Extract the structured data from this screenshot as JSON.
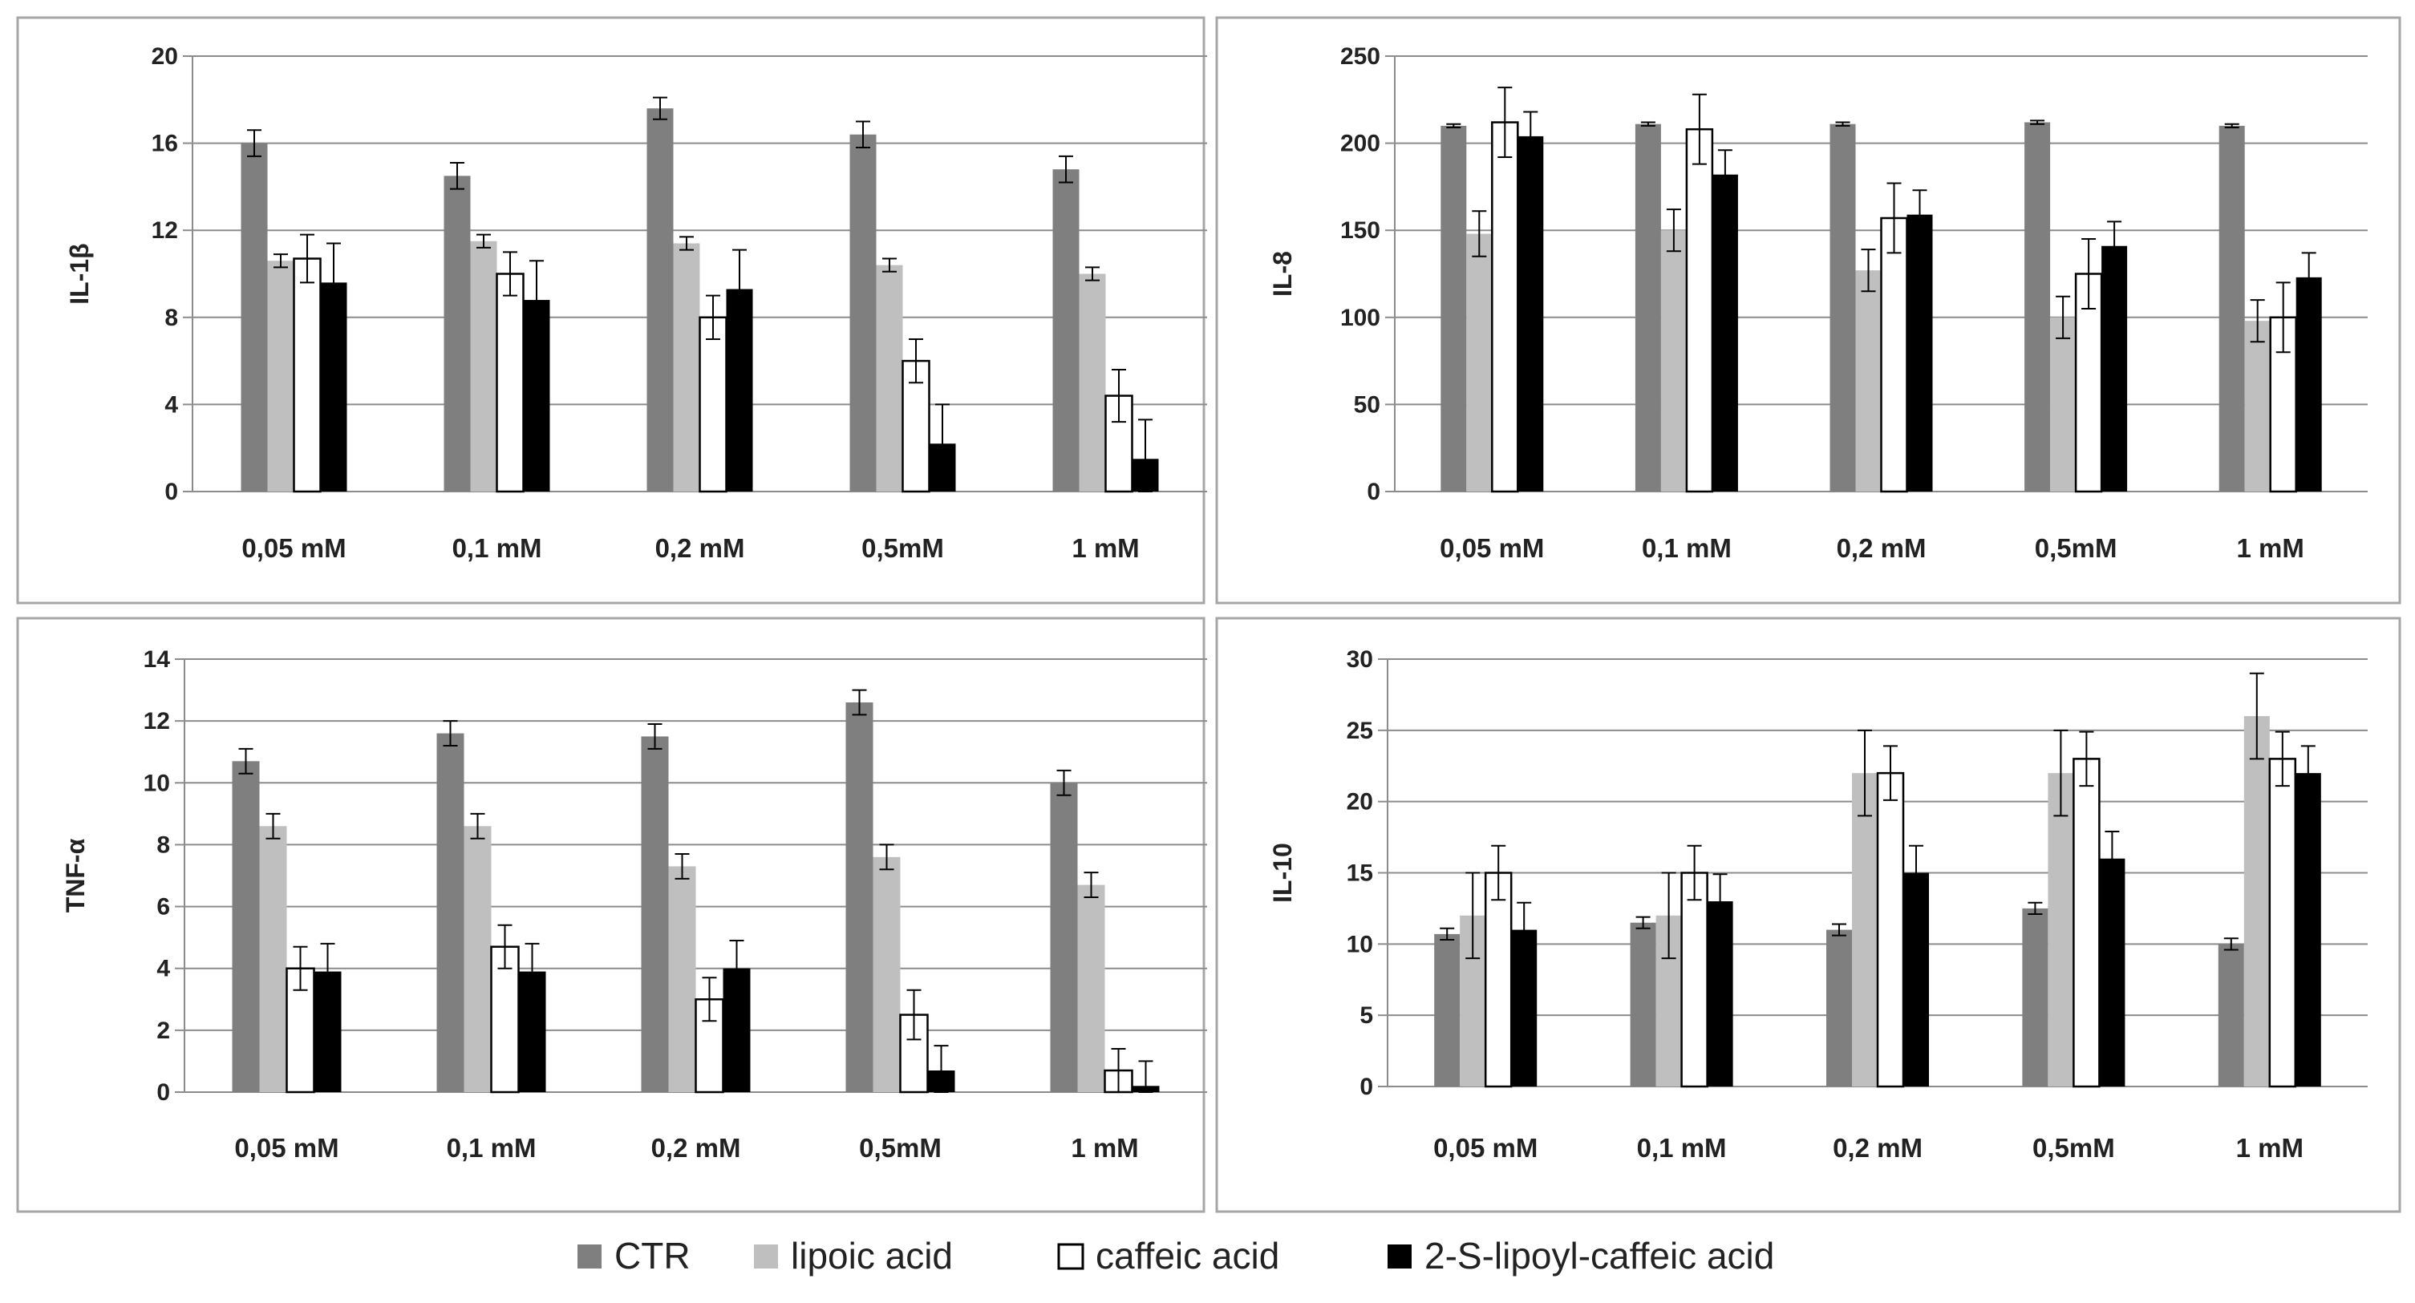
{
  "legend": {
    "items": [
      {
        "label": "CTR",
        "color": "#7f7f7f"
      },
      {
        "label": "lipoic acid",
        "color": "#bfbfbf"
      },
      {
        "label": "caffeic acid",
        "color": "#ffffff"
      },
      {
        "label": "2-S-lipoyl-caffeic acid",
        "color": "#000000"
      }
    ]
  },
  "chart_data": [
    {
      "type": "bar",
      "ylabel": "IL-1β",
      "ylim": [
        0,
        20
      ],
      "yticks": [
        "0",
        "4",
        "8",
        "12",
        "16",
        "20"
      ],
      "categories": [
        "0,05 mM",
        "0,1 mM",
        "0,2 mM",
        "0,5mM",
        "1 mM"
      ],
      "grid": true,
      "series": [
        {
          "name": "CTR",
          "values": [
            16,
            14.5,
            17.6,
            16.4,
            14.8
          ],
          "errors": [
            0.6,
            0.6,
            0.5,
            0.6,
            0.6
          ]
        },
        {
          "name": "lipoic acid",
          "values": [
            10.6,
            11.5,
            11.4,
            10.4,
            10.0
          ],
          "errors": [
            0.3,
            0.3,
            0.3,
            0.3,
            0.3
          ]
        },
        {
          "name": "caffeic acid",
          "values": [
            10.7,
            10.0,
            8.0,
            6.0,
            4.4
          ],
          "errors": [
            1.1,
            1.0,
            1.0,
            1.0,
            1.2
          ]
        },
        {
          "name": "2-S-lipoyl-caffeic acid",
          "values": [
            9.6,
            8.8,
            9.3,
            2.2,
            1.5
          ],
          "errors": [
            1.8,
            1.8,
            1.8,
            1.8,
            1.8
          ]
        }
      ]
    },
    {
      "type": "bar",
      "ylabel": "IL-8",
      "ylim": [
        0,
        250
      ],
      "yticks": [
        "0",
        "50",
        "100",
        "150",
        "200",
        "250"
      ],
      "categories": [
        "0,05 mM",
        "0,1 mM",
        "0,2 mM",
        "0,5mM",
        "1 mM"
      ],
      "grid": true,
      "series": [
        {
          "name": "CTR",
          "values": [
            210,
            211,
            211,
            212,
            210
          ],
          "errors": [
            1,
            1,
            1,
            1,
            1
          ]
        },
        {
          "name": "lipoic acid",
          "values": [
            148,
            150,
            127,
            100,
            98
          ],
          "errors": [
            13,
            12,
            12,
            12,
            12
          ]
        },
        {
          "name": "caffeic acid",
          "values": [
            212,
            208,
            157,
            125,
            100
          ],
          "errors": [
            20,
            20,
            20,
            20,
            20
          ]
        },
        {
          "name": "2-S-lipoyl-caffeic acid",
          "values": [
            204,
            182,
            159,
            141,
            123
          ],
          "errors": [
            14,
            14,
            14,
            14,
            14
          ]
        }
      ]
    },
    {
      "type": "bar",
      "ylabel": "TNF-α",
      "ylim": [
        0,
        14
      ],
      "yticks": [
        "0",
        "2",
        "4",
        "6",
        "8",
        "10",
        "12",
        "14"
      ],
      "categories": [
        "0,05 mM",
        "0,1 mM",
        "0,2 mM",
        "0,5mM",
        "1 mM"
      ],
      "grid": true,
      "series": [
        {
          "name": "CTR",
          "values": [
            10.7,
            11.6,
            11.5,
            12.6,
            10.0
          ],
          "errors": [
            0.4,
            0.4,
            0.4,
            0.4,
            0.4
          ]
        },
        {
          "name": "lipoic acid",
          "values": [
            8.6,
            8.6,
            7.3,
            7.6,
            6.7
          ],
          "errors": [
            0.4,
            0.4,
            0.4,
            0.4,
            0.4
          ]
        },
        {
          "name": "caffeic acid",
          "values": [
            4.0,
            4.7,
            3.0,
            2.5,
            0.7
          ],
          "errors": [
            0.7,
            0.7,
            0.7,
            0.8,
            0.7
          ]
        },
        {
          "name": "2-S-lipoyl-caffeic acid",
          "values": [
            3.9,
            3.9,
            4.0,
            0.7,
            0.2
          ],
          "errors": [
            0.9,
            0.9,
            0.9,
            0.8,
            0.8
          ]
        }
      ]
    },
    {
      "type": "bar",
      "ylabel": "IL-10",
      "ylim": [
        0,
        30
      ],
      "yticks": [
        "0",
        "5",
        "10",
        "15",
        "20",
        "25",
        "30"
      ],
      "categories": [
        "0,05 mM",
        "0,1 mM",
        "0,2 mM",
        "0,5mM",
        "1 mM"
      ],
      "grid": true,
      "series": [
        {
          "name": "CTR",
          "values": [
            10.7,
            11.5,
            11.0,
            12.5,
            10.0
          ],
          "errors": [
            0.4,
            0.4,
            0.4,
            0.4,
            0.4
          ]
        },
        {
          "name": "lipoic acid",
          "values": [
            12.0,
            12.0,
            22.0,
            22.0,
            26.0
          ],
          "errors": [
            3.0,
            3.0,
            3.0,
            3.0,
            3.0
          ]
        },
        {
          "name": "caffeic acid",
          "values": [
            15.0,
            15.0,
            22.0,
            23.0,
            23.0
          ],
          "errors": [
            1.9,
            1.9,
            1.9,
            1.9,
            1.9
          ]
        },
        {
          "name": "2-S-lipoyl-caffeic acid",
          "values": [
            11.0,
            13.0,
            15.0,
            16.0,
            22.0
          ],
          "errors": [
            1.9,
            1.9,
            1.9,
            1.9,
            1.9
          ]
        }
      ]
    }
  ]
}
